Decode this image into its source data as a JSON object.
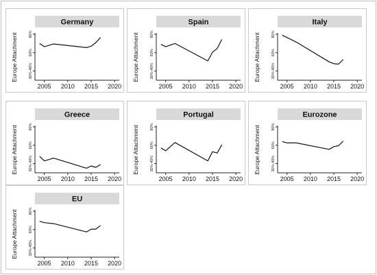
{
  "chart_data": [
    {
      "type": "line",
      "title": "Germany",
      "ylabel": "Europe Attachment",
      "ylim": [
        0.3,
        0.8
      ],
      "yticks": [
        0.8,
        0.6,
        0.4
      ],
      "ytick_labels": [
        "80%",
        "60%",
        "30%-40%"
      ],
      "xlim": [
        2003,
        2021
      ],
      "xticks": [
        2005,
        2010,
        2015,
        2020
      ],
      "xtick_labels": [
        "2005",
        "2010",
        "2015",
        "2020"
      ],
      "series": [
        {
          "x": [
            2004,
            2005,
            2007,
            2014,
            2015,
            2016,
            2017
          ],
          "y": [
            0.7,
            0.665,
            0.695,
            0.655,
            0.67,
            0.71,
            0.765
          ]
        }
      ]
    },
    {
      "type": "line",
      "title": "Spain",
      "ylabel": "Europe Attachment",
      "ylim": [
        0.3,
        0.8
      ],
      "yticks": [
        0.8,
        0.6,
        0.4
      ],
      "ytick_labels": [
        "80%",
        "60%",
        "30%-40%"
      ],
      "xlim": [
        2003,
        2021
      ],
      "xticks": [
        2005,
        2010,
        2015,
        2020
      ],
      "xtick_labels": [
        "2005",
        "2010",
        "2015",
        "2020"
      ],
      "series": [
        {
          "x": [
            2004,
            2005,
            2007,
            2014,
            2015,
            2016,
            2017
          ],
          "y": [
            0.69,
            0.665,
            0.7,
            0.51,
            0.605,
            0.645,
            0.745
          ]
        }
      ]
    },
    {
      "type": "line",
      "title": "Italy",
      "ylabel": "Europe Attachment",
      "ylim": [
        0.3,
        0.8
      ],
      "yticks": [
        0.8,
        0.6,
        0.4
      ],
      "ytick_labels": [
        "80%",
        "60%",
        "30%-40%"
      ],
      "xlim": [
        2003,
        2021
      ],
      "xticks": [
        2005,
        2010,
        2015,
        2020
      ],
      "xtick_labels": [
        "2005",
        "2010",
        "2015",
        "2020"
      ],
      "series": [
        {
          "x": [
            2004,
            2005,
            2007,
            2014,
            2015,
            2016,
            2017
          ],
          "y": [
            0.79,
            0.765,
            0.715,
            0.5,
            0.48,
            0.475,
            0.525
          ]
        }
      ]
    },
    {
      "type": "line",
      "title": "Greece",
      "ylabel": "Europe Attachment",
      "ylim": [
        0.3,
        0.8
      ],
      "yticks": [
        0.8,
        0.6,
        0.4
      ],
      "ytick_labels": [
        "80%",
        "60%",
        "30%-40%"
      ],
      "xlim": [
        2003,
        2021
      ],
      "xticks": [
        2005,
        2010,
        2015,
        2020
      ],
      "xtick_labels": [
        "2005",
        "2010",
        "2015",
        "2020"
      ],
      "series": [
        {
          "x": [
            2004,
            2005,
            2007,
            2014,
            2015,
            2016,
            2017
          ],
          "y": [
            0.48,
            0.43,
            0.46,
            0.35,
            0.375,
            0.36,
            0.39
          ]
        }
      ]
    },
    {
      "type": "line",
      "title": "Portugal",
      "ylabel": "Europe Attachment",
      "ylim": [
        0.3,
        0.8
      ],
      "yticks": [
        0.8,
        0.6,
        0.4
      ],
      "ytick_labels": [
        "80%",
        "60%",
        "30%-40%"
      ],
      "xlim": [
        2003,
        2021
      ],
      "xticks": [
        2005,
        2010,
        2015,
        2020
      ],
      "xtick_labels": [
        "2005",
        "2010",
        "2015",
        "2020"
      ],
      "series": [
        {
          "x": [
            2004,
            2005,
            2007,
            2014,
            2015,
            2016,
            2017
          ],
          "y": [
            0.57,
            0.54,
            0.63,
            0.43,
            0.53,
            0.515,
            0.605
          ]
        }
      ]
    },
    {
      "type": "line",
      "title": "Eurozone",
      "ylabel": "Europe Attachment",
      "ylim": [
        0.3,
        0.8
      ],
      "yticks": [
        0.8,
        0.6,
        0.4
      ],
      "ytick_labels": [
        "80%",
        "60%",
        "30%-40%"
      ],
      "xlim": [
        2003,
        2021
      ],
      "xticks": [
        2005,
        2010,
        2015,
        2020
      ],
      "xtick_labels": [
        "2005",
        "2010",
        "2015",
        "2020"
      ],
      "series": [
        {
          "x": [
            2004,
            2005,
            2007,
            2014,
            2015,
            2016,
            2017
          ],
          "y": [
            0.64,
            0.625,
            0.625,
            0.555,
            0.585,
            0.595,
            0.645
          ]
        }
      ]
    },
    {
      "type": "line",
      "title": "EU",
      "ylabel": "Europe Attachment",
      "ylim": [
        0.3,
        0.8
      ],
      "yticks": [
        0.8,
        0.6,
        0.4
      ],
      "ytick_labels": [
        "80%",
        "60%",
        "30%-40%"
      ],
      "xlim": [
        2003,
        2021
      ],
      "xticks": [
        2005,
        2010,
        2015,
        2020
      ],
      "xtick_labels": [
        "2005",
        "2010",
        "2015",
        "2020"
      ],
      "series": [
        {
          "x": [
            2004,
            2005,
            2007,
            2014,
            2015,
            2016,
            2017
          ],
          "y": [
            0.69,
            0.675,
            0.665,
            0.575,
            0.605,
            0.605,
            0.645
          ]
        }
      ]
    }
  ]
}
